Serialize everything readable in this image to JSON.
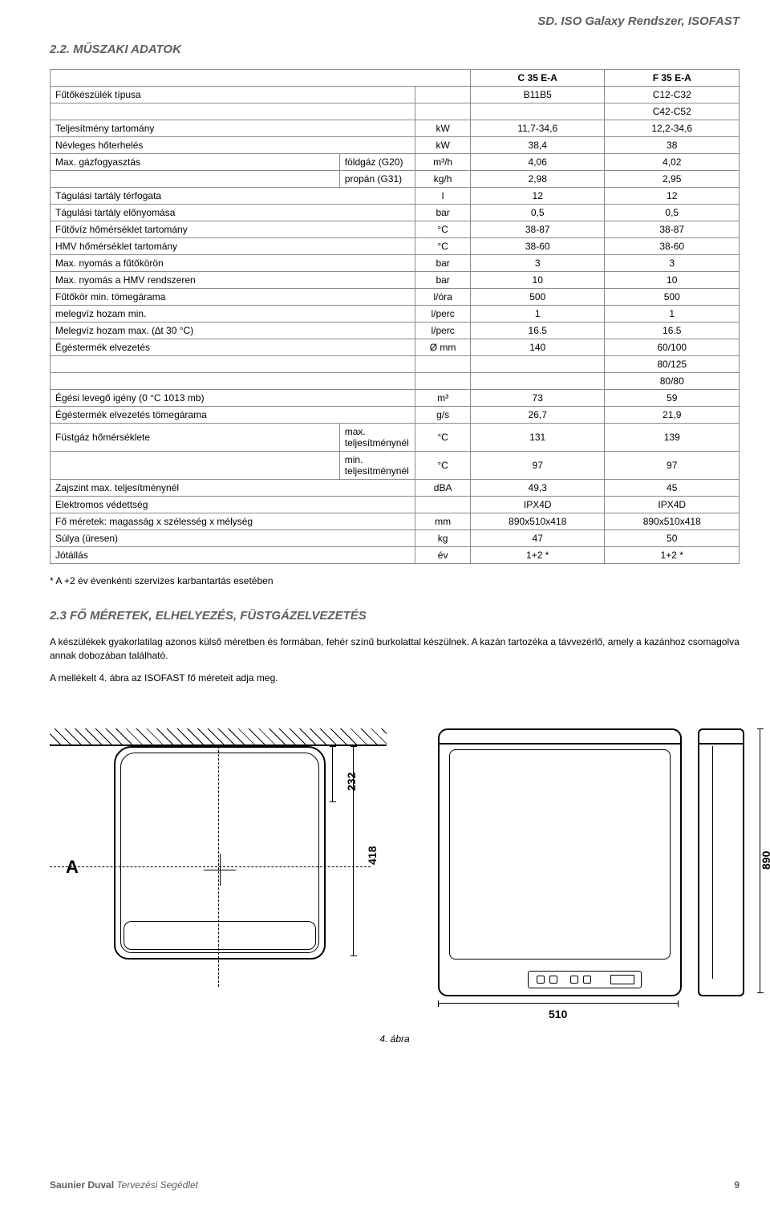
{
  "header": {
    "product": "SD. ISO Galaxy Rendszer, ISOFAST"
  },
  "section1": {
    "title": "2.2. MŰSZAKI ADATOK"
  },
  "table": {
    "cols": {
      "c1": "C 35 E-A",
      "c2": "F 35 E-A"
    },
    "rows": [
      {
        "label": "Fűtőkészülék típusa",
        "sub": "",
        "unit": "",
        "v1": "B11B5",
        "v2": "C12-C32",
        "v2extra": "C42-C52"
      },
      {
        "label": "Teljesítmény tartomány",
        "sub": "",
        "unit": "kW",
        "v1": "11,7-34,6",
        "v2": "12,2-34,6"
      },
      {
        "label": "Névleges hőterhelés",
        "sub": "",
        "unit": "kW",
        "v1": "38,4",
        "v2": "38"
      },
      {
        "label": "Max. gázfogyasztás",
        "sub": "földgáz (G20)",
        "unit": "m³/h",
        "v1": "4,06",
        "v2": "4,02"
      },
      {
        "label": "",
        "sub": "propán (G31)",
        "unit": "kg/h",
        "v1": "2,98",
        "v2": "2,95"
      },
      {
        "label": "Tágulási tartály térfogata",
        "sub": "",
        "unit": "l",
        "v1": "12",
        "v2": "12"
      },
      {
        "label": "Tágulási tartály előnyomása",
        "sub": "",
        "unit": "bar",
        "v1": "0,5",
        "v2": "0,5"
      },
      {
        "label": "Fűtővíz hőmérséklet tartomány",
        "sub": "",
        "unit": "°C",
        "v1": "38-87",
        "v2": "38-87"
      },
      {
        "label": "HMV hőmérséklet tartomány",
        "sub": "",
        "unit": "°C",
        "v1": "38-60",
        "v2": "38-60"
      },
      {
        "label": "Max. nyomás a fűtőkörön",
        "sub": "",
        "unit": "bar",
        "v1": "3",
        "v2": "3"
      },
      {
        "label": "Max. nyomás a HMV rendszeren",
        "sub": "",
        "unit": "bar",
        "v1": "10",
        "v2": "10"
      },
      {
        "label": "Fűtőkör min. tömegárama",
        "sub": "",
        "unit": "l/óra",
        "v1": "500",
        "v2": "500"
      },
      {
        "label": "melegvíz hozam min.",
        "sub": "",
        "unit": "l/perc",
        "v1": "1",
        "v2": "1"
      },
      {
        "label": "Melegvíz hozam max. (∆t 30 °C)",
        "sub": "",
        "unit": "l/perc",
        "v1": "16.5",
        "v2": "16.5"
      },
      {
        "label": "Égéstermék elvezetés",
        "sub": "",
        "unit": "Ø mm",
        "v1": "140",
        "v2": "60/100",
        "v2extra": "80/125",
        "v2extra2": "80/80"
      },
      {
        "label": "Égési levegő igény (0 °C 1013 mb)",
        "sub": "",
        "unit": "m³",
        "v1": "73",
        "v2": "59"
      },
      {
        "label": "Égéstermék elvezetés tömegárama",
        "sub": "",
        "unit": "g/s",
        "v1": "26,7",
        "v2": "21,9"
      },
      {
        "label": "Füstgáz hőmérséklete",
        "sub": "max. teljesítménynél",
        "unit": "°C",
        "v1": "131",
        "v2": "139"
      },
      {
        "label": "",
        "sub": "min. teljesítménynél",
        "unit": "°C",
        "v1": "97",
        "v2": "97"
      },
      {
        "label": "Zajszint max. teljesítménynél",
        "sub": "",
        "unit": "dBA",
        "v1": "49,3",
        "v2": "45"
      },
      {
        "label": "Elektromos védettség",
        "sub": "",
        "unit": "",
        "v1": "IPX4D",
        "v2": "IPX4D"
      },
      {
        "label": "Fő méretek: magasság x szélesség x mélység",
        "sub": "",
        "unit": "mm",
        "v1": "890x510x418",
        "v2": "890x510x418"
      },
      {
        "label": "Súlya (üresen)",
        "sub": "",
        "unit": "kg",
        "v1": "47",
        "v2": "50"
      },
      {
        "label": "Jótállás",
        "sub": "",
        "unit": "év",
        "v1": "1+2 *",
        "v2": "1+2 *"
      }
    ]
  },
  "footnote": "* A +2 év évenkénti szervizes karbantartás esetében",
  "section2": {
    "title": "2.3 FŐ MÉRETEK, ELHELYEZÉS, FÜSTGÁZELVEZETÉS",
    "p1": "A készülékek gyakorlatilag azonos külső méretben és formában, fehér színű burkolattal készülnek. A kazán tartozéka a távvezérlő, amely a kazánhoz csomagolva annak dobozában található.",
    "p2": "A mellékelt 4. ábra az ISOFAST fő méreteit adja meg."
  },
  "figure": {
    "caption": "4. ábra",
    "labelA": "A",
    "dims": {
      "d232": "232",
      "d418": "418",
      "d890": "890",
      "d510": "510"
    }
  },
  "footer": {
    "brand": "Saunier Duval",
    "doc": "Tervezési Segédlet",
    "page": "9"
  }
}
